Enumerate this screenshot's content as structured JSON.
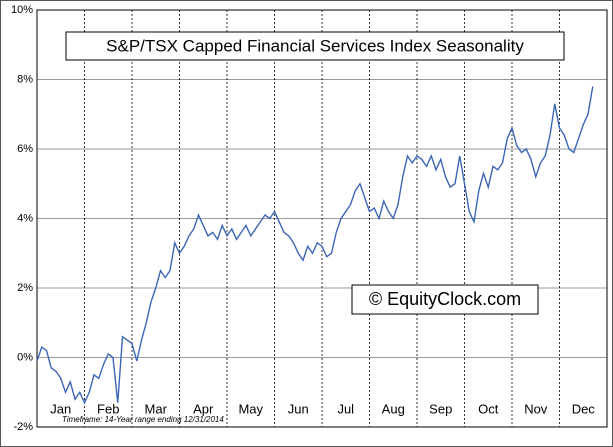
{
  "chart_data": {
    "type": "line",
    "title": "S&P/TSX Capped Financial Services Index Seasonality",
    "watermark": "© EquityClock.com",
    "footnote": "Timeframe: 14-Year range ending 12/31/2014",
    "x": [
      0.0,
      0.1,
      0.2,
      0.3,
      0.4,
      0.5,
      0.6,
      0.7,
      0.8,
      0.9,
      1.0,
      1.1,
      1.2,
      1.3,
      1.4,
      1.5,
      1.6,
      1.7,
      1.8,
      1.9,
      2.0,
      2.1,
      2.2,
      2.3,
      2.4,
      2.5,
      2.6,
      2.7,
      2.8,
      2.9,
      3.0,
      3.1,
      3.2,
      3.3,
      3.4,
      3.5,
      3.6,
      3.7,
      3.8,
      3.9,
      4.0,
      4.1,
      4.2,
      4.3,
      4.4,
      4.5,
      4.6,
      4.7,
      4.8,
      4.9,
      5.0,
      5.1,
      5.2,
      5.3,
      5.4,
      5.5,
      5.6,
      5.7,
      5.8,
      5.9,
      6.0,
      6.1,
      6.2,
      6.3,
      6.4,
      6.5,
      6.6,
      6.7,
      6.8,
      6.9,
      7.0,
      7.1,
      7.2,
      7.3,
      7.4,
      7.5,
      7.6,
      7.7,
      7.8,
      7.9,
      8.0,
      8.1,
      8.2,
      8.3,
      8.4,
      8.5,
      8.6,
      8.7,
      8.8,
      8.9,
      9.0,
      9.1,
      9.2,
      9.3,
      9.4,
      9.5,
      9.6,
      9.7,
      9.8,
      9.9,
      10.0,
      10.1,
      10.2,
      10.3,
      10.4,
      10.5,
      10.6,
      10.7,
      10.8,
      10.9,
      11.0,
      11.1,
      11.2,
      11.3,
      11.4,
      11.5,
      11.6,
      11.7
    ],
    "series": [
      {
        "color": "#3a66b8",
        "values": [
          -0.1,
          0.3,
          0.2,
          -0.3,
          -0.4,
          -0.6,
          -1.0,
          -0.7,
          -1.2,
          -1.0,
          -1.3,
          -1.0,
          -0.5,
          -0.6,
          -0.2,
          0.1,
          0.0,
          -1.3,
          0.6,
          0.5,
          0.4,
          -0.1,
          0.5,
          1.0,
          1.6,
          2.0,
          2.5,
          2.3,
          2.5,
          3.3,
          3.0,
          3.2,
          3.5,
          3.7,
          4.1,
          3.8,
          3.5,
          3.6,
          3.4,
          3.8,
          3.5,
          3.7,
          3.4,
          3.6,
          3.8,
          3.5,
          3.7,
          3.9,
          4.1,
          4.0,
          4.2,
          3.9,
          3.6,
          3.5,
          3.3,
          3.0,
          2.8,
          3.2,
          3.0,
          3.3,
          3.2,
          2.9,
          3.0,
          3.6,
          4.0,
          4.2,
          4.4,
          4.8,
          5.0,
          4.6,
          4.2,
          4.3,
          4.0,
          4.5,
          4.2,
          4.0,
          4.4,
          5.2,
          5.8,
          5.6,
          5.8,
          5.7,
          5.5,
          5.8,
          5.4,
          5.7,
          5.2,
          4.9,
          5.0,
          5.8,
          5.0,
          4.2,
          3.9,
          4.8,
          5.3,
          4.9,
          5.5,
          5.4,
          5.6,
          6.3,
          6.6,
          6.1,
          5.9,
          6.0,
          5.7,
          5.2,
          5.6,
          5.8,
          6.4,
          7.3,
          6.6,
          6.4,
          6.0,
          5.9,
          6.3,
          6.7,
          7.0,
          7.8
        ]
      }
    ],
    "xlim": [
      0,
      12
    ],
    "xticks": [
      {
        "value": 0.5,
        "label": "Jan"
      },
      {
        "value": 1.5,
        "label": "Feb"
      },
      {
        "value": 2.5,
        "label": "Mar"
      },
      {
        "value": 3.5,
        "label": "Apr"
      },
      {
        "value": 4.5,
        "label": "May"
      },
      {
        "value": 5.5,
        "label": "Jun"
      },
      {
        "value": 6.5,
        "label": "Jul"
      },
      {
        "value": 7.5,
        "label": "Aug"
      },
      {
        "value": 8.5,
        "label": "Sep"
      },
      {
        "value": 9.5,
        "label": "Oct"
      },
      {
        "value": 10.5,
        "label": "Nov"
      },
      {
        "value": 11.5,
        "label": "Dec"
      }
    ],
    "ylim": [
      -2,
      10
    ],
    "yticks": [
      {
        "value": -2,
        "label": "-2%"
      },
      {
        "value": 0,
        "label": "0%"
      },
      {
        "value": 2,
        "label": "2%"
      },
      {
        "value": 4,
        "label": "4%"
      },
      {
        "value": 6,
        "label": "6%"
      },
      {
        "value": 8,
        "label": "8%"
      },
      {
        "value": 10,
        "label": "10%"
      }
    ],
    "grid": true
  }
}
